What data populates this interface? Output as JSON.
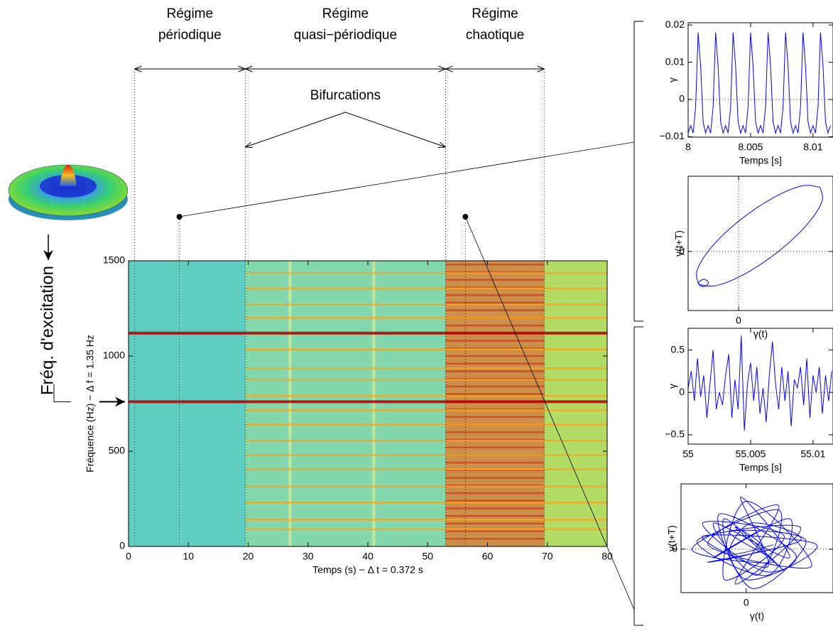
{
  "chart_data": [
    {
      "type": "spectrogram",
      "xlabel": "Temps (s) − Δ t = 0.372 s",
      "ylabel": "Fréquence (Hz) − Δ f = 1.35 Hz",
      "xlim": [
        0,
        80
      ],
      "xticks": [
        0,
        10,
        20,
        30,
        40,
        50,
        60,
        70,
        80
      ],
      "ylim": [
        0,
        1500
      ],
      "yticks": [
        0,
        500,
        1000,
        1500
      ],
      "background_color": "#5fcdbf",
      "regimes": [
        {
          "label": [
            "Régime",
            "périodique"
          ],
          "start": 1,
          "end": 19.5
        },
        {
          "label": [
            "Régime",
            "quasi−périodique"
          ],
          "start": 19.5,
          "end": 53
        },
        {
          "label": [
            "Régime",
            "chaotique"
          ],
          "start": 53,
          "end": 69.5
        }
      ],
      "annotation": "Bifurcations",
      "bifurcations": [
        19.5,
        53
      ],
      "samples": [
        8.5,
        56.3
      ],
      "regions": [
        {
          "start": 19.5,
          "end": 53,
          "color": "#8fd9a6"
        },
        {
          "start": 53,
          "end": 69.5,
          "color": "#f07a22"
        },
        {
          "start": 69.5,
          "end": 80,
          "color": "#cfe04a"
        }
      ],
      "vertical_features": [
        27,
        41
      ],
      "vertical_feature_color": "#f2f08a",
      "ridge_groups": [
        {
          "start": 53,
          "end": 69.5,
          "color": "#c8200f",
          "frequencies": [
            40,
            80,
            120,
            160,
            200,
            240,
            280,
            320,
            360,
            400,
            440,
            480,
            520,
            560,
            600,
            640,
            680,
            720,
            760,
            800,
            840,
            880,
            920,
            960,
            1000,
            1040,
            1080,
            1120,
            1160,
            1200,
            1240,
            1280,
            1320,
            1360,
            1400,
            1440,
            1480
          ]
        },
        {
          "start": 19.5,
          "end": 80,
          "color": "#f5a623",
          "frequencies": [
            90,
            140,
            230,
            315,
            405,
            480,
            555,
            640,
            715,
            790,
            875,
            935,
            1035,
            1200,
            1270,
            1355,
            1435
          ]
        },
        {
          "start": 0,
          "end": 80,
          "color": "#b00000",
          "frequencies": [
            760,
            1120
          ]
        }
      ],
      "excitation_label": "Fréq. d'excitation",
      "excitation_frequency": 760
    },
    {
      "type": "line",
      "ylabel": "γ",
      "xlabel": "Temps [s]",
      "color": "#0000ff",
      "zero_lines": [
        "y"
      ],
      "xlim": [
        8,
        8.0116
      ],
      "xticks": [
        8,
        8.005,
        8.01
      ],
      "ylim": [
        -0.0101,
        0.0206
      ],
      "yticks": [
        {
          "value": -0.01,
          "label": "−0.01"
        },
        0,
        0.01,
        0.02
      ],
      "x": [
        8,
        8.0002,
        8.0004,
        8.0006,
        8.0008,
        8.001,
        8.0012,
        8.0014,
        8.0016,
        8.0018,
        8.002,
        8.0022,
        8.0024,
        8.0026,
        8.0028,
        8.003,
        8.0032,
        8.0034,
        8.0036,
        8.0038,
        8.004,
        8.0042,
        8.0044,
        8.0046,
        8.0048,
        8.005,
        8.0052,
        8.0054,
        8.0056,
        8.0058,
        8.006,
        8.0062,
        8.0064,
        8.0066,
        8.0068,
        8.007,
        8.0072,
        8.0074,
        8.0076,
        8.0078,
        8.008,
        8.0082,
        8.0084,
        8.0086,
        8.0088,
        8.009,
        8.0092,
        8.0094,
        8.0096,
        8.0098,
        8.01,
        8.0102,
        8.0104,
        8.0106,
        8.0108,
        8.011,
        8.0112,
        8.0114
      ],
      "values": [
        -0.009,
        -0.007,
        -0.009,
        -0.002,
        0.018,
        0.009,
        -0.006,
        -0.009,
        -0.007,
        -0.009,
        -0.002,
        0.018,
        0.009,
        -0.006,
        -0.009,
        -0.007,
        -0.009,
        -0.002,
        0.018,
        0.009,
        -0.006,
        -0.009,
        -0.007,
        -0.009,
        -0.002,
        0.018,
        0.009,
        -0.006,
        -0.009,
        -0.007,
        -0.009,
        -0.002,
        0.018,
        0.009,
        -0.006,
        -0.009,
        -0.007,
        -0.009,
        -0.002,
        0.018,
        0.009,
        -0.006,
        -0.009,
        -0.007,
        -0.009,
        -0.002,
        0.018,
        0.009,
        -0.006,
        -0.009,
        -0.007,
        -0.009,
        -0.002,
        0.018,
        0.009,
        -0.006,
        -0.009,
        -0.007
      ]
    },
    {
      "type": "phase_portrait",
      "ylabel": "γ(t+T)",
      "xlabel": "γ(t)",
      "color": "#0000ff",
      "zero_lines": [
        "x",
        "y"
      ],
      "xlim": [
        -0.0109,
        0.0204
      ],
      "xticks": [
        0
      ],
      "ylim": [
        -0.016,
        0.0204
      ],
      "yticks": [
        0
      ],
      "x": [
        0.0176,
        0.018,
        0.0147,
        0.0087,
        0.0016,
        -0.0047,
        -0.0086,
        -0.0075,
        -0.0065,
        -0.0075,
        -0.0086,
        -0.0089,
        -0.0057,
        0.0003,
        0.0074,
        0.0137,
        0.0176
      ],
      "values": [
        0.0174,
        0.0135,
        0.0072,
        0.0001,
        -0.0059,
        -0.0092,
        -0.0088,
        -0.0075,
        -0.0085,
        -0.0095,
        -0.0088,
        -0.0049,
        0.0014,
        0.0085,
        0.0145,
        0.0178,
        0.0174
      ]
    },
    {
      "type": "line",
      "ylabel": "γ",
      "xlabel": "Temps [s]",
      "color": "#0000ff",
      "zero_lines": [
        "y"
      ],
      "xlim": [
        55,
        55.0116
      ],
      "xticks": [
        55,
        55.005,
        55.01
      ],
      "ylim": [
        -0.61,
        0.756
      ],
      "yticks": [
        {
          "value": -0.5,
          "label": "−0.5"
        },
        0,
        0.5
      ],
      "x": [
        55,
        55.00025,
        55.0005,
        55.00075,
        55.001,
        55.00125,
        55.0015,
        55.00175,
        55.002,
        55.00225,
        55.0025,
        55.00275,
        55.003,
        55.00325,
        55.0035,
        55.00375,
        55.004,
        55.00425,
        55.0045,
        55.00475,
        55.005,
        55.00525,
        55.0055,
        55.00575,
        55.006,
        55.00625,
        55.0065,
        55.00675,
        55.007,
        55.00725,
        55.0075,
        55.00775,
        55.008,
        55.00825,
        55.0085,
        55.00875,
        55.009,
        55.00925,
        55.0095,
        55.00975,
        55.01,
        55.01025,
        55.0105,
        55.01075,
        55.011,
        55.01125,
        55.0115
      ],
      "values": [
        0.05,
        0.25,
        -0.1,
        0.4,
        -0.05,
        0.2,
        -0.3,
        0.1,
        0.5,
        -0.2,
        0,
        -0.15,
        0.2,
        0.45,
        -0.3,
        0.15,
        -0.2,
        0.67,
        -0.45,
        0.1,
        0.35,
        -0.1,
        0.3,
        -0.25,
        0.05,
        -0.35,
        0.2,
        0.6,
        0.1,
        -0.2,
        0.3,
        -0.1,
        0.25,
        -0.4,
        0.15,
        0.05,
        0.3,
        -0.15,
        0.4,
        -0.3,
        0.2,
        0,
        0.3,
        -0.25,
        0.2,
        -0.1,
        0.25
      ]
    },
    {
      "type": "phase_portrait",
      "ylabel": "γ(t+T)",
      "xlabel": "γ(t)",
      "color": "#0000ff",
      "zero_lines": [
        "y"
      ],
      "xlim": [
        -0.6,
        0.8
      ],
      "xticks": [
        0
      ],
      "ylim": [
        -0.5,
        0.75
      ],
      "yticks": [
        0
      ],
      "x": [
        0.1,
        -0.3,
        0.4,
        0.2,
        -0.45,
        0.5,
        -0.1,
        0.3,
        -0.35,
        0.6,
        0,
        -0.2,
        0.35,
        -0.4,
        0.15,
        0.45,
        -0.25,
        0.05,
        0.55,
        -0.15,
        0.25,
        -0.5,
        0.3,
        0.1,
        -0.3,
        0.4,
        -0.05,
        0.2,
        -0.4,
        0.65,
        0,
        -0.2,
        0.35,
        -0.1,
        0.15,
        -0.35,
        0.5,
        0.05,
        -0.15,
        0.25
      ],
      "values": [
        0.2,
        -0.1,
        0.35,
        -0.3,
        0.1,
        0.25,
        -0.4,
        0.5,
        0.05,
        -0.2,
        0.55,
        -0.35,
        0.15,
        0.3,
        -0.25,
        -0.05,
        0.4,
        -0.45,
        0.1,
        0.2,
        -0.15,
        0,
        0.45,
        -0.3,
        0.3,
        -0.1,
        0.6,
        -0.2,
        0.15,
        0.05,
        -0.35,
        0.35,
        -0.25,
        0.25,
        0,
        -0.15,
        0.1,
        0.3,
        -0.05,
        0.05
      ]
    }
  ]
}
